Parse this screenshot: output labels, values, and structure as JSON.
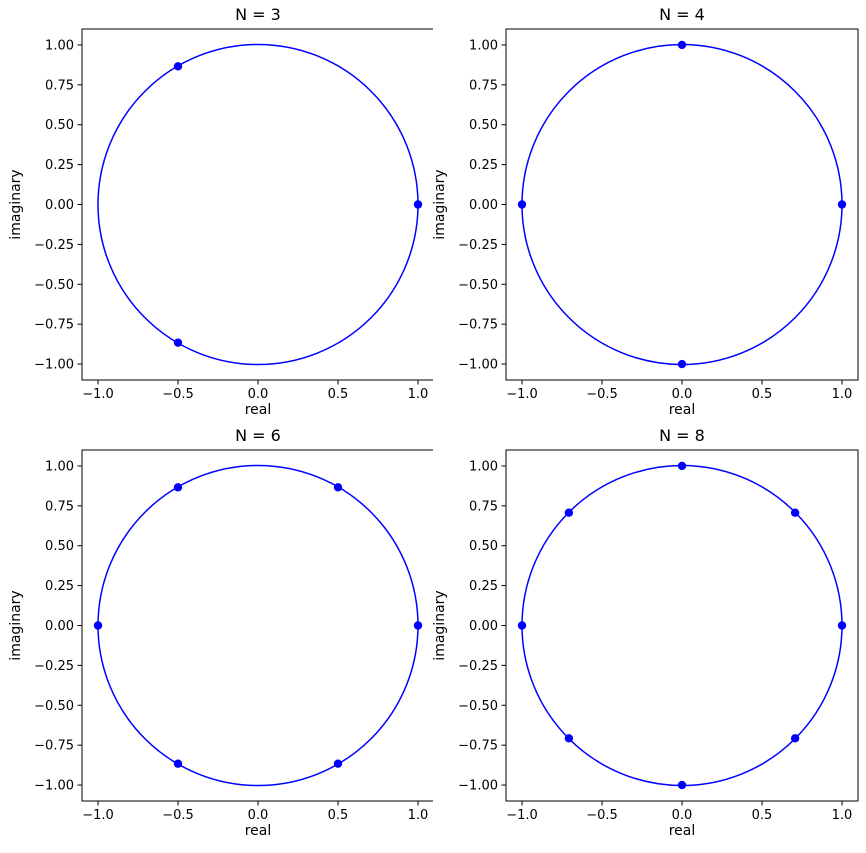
{
  "figure": {
    "background": "#ffffff"
  },
  "style": {
    "line_color": "#0000ff",
    "marker_color": "#0000ff",
    "axis_color": "#000000",
    "text_color": "#000000",
    "background": "#ffffff"
  },
  "chart_data": [
    {
      "type": "scatter",
      "title": "N = 3",
      "xlabel": "real",
      "ylabel": "imaginary",
      "xlim": [
        -1.1,
        1.1
      ],
      "ylim": [
        -1.1,
        1.1
      ],
      "grid": false,
      "legend": "none",
      "xticks": {
        "values": [
          -1.0,
          -0.5,
          0.0,
          0.5,
          1.0
        ],
        "labels": [
          "−1.0",
          "−0.5",
          "0.0",
          "0.5",
          "1.0"
        ]
      },
      "yticks": {
        "values": [
          1.0,
          0.75,
          0.5,
          0.25,
          0.0,
          -0.25,
          -0.5,
          -0.75,
          -1.0
        ],
        "labels": [
          "1.00",
          "0.75",
          "0.50",
          "0.25",
          "0.00",
          "−0.25",
          "−0.50",
          "−0.75",
          "−1.00"
        ]
      },
      "unit_circle": {
        "cx": 0,
        "cy": 0,
        "r": 1,
        "color": "#0000ff"
      },
      "points": {
        "color": "#0000ff",
        "xy": [
          [
            1,
            0
          ],
          [
            -0.5,
            0.866
          ],
          [
            -0.5,
            -0.866
          ]
        ]
      },
      "n_roots": 3
    },
    {
      "type": "scatter",
      "title": "N = 4",
      "xlabel": "real",
      "ylabel": "imaginary",
      "xlim": [
        -1.1,
        1.1
      ],
      "ylim": [
        -1.1,
        1.1
      ],
      "grid": false,
      "legend": "none",
      "xticks": {
        "values": [
          -1.0,
          -0.5,
          0.0,
          0.5,
          1.0
        ],
        "labels": [
          "−1.0",
          "−0.5",
          "0.0",
          "0.5",
          "1.0"
        ]
      },
      "yticks": {
        "values": [
          1.0,
          0.75,
          0.5,
          0.25,
          0.0,
          -0.25,
          -0.5,
          -0.75,
          -1.0
        ],
        "labels": [
          "1.00",
          "0.75",
          "0.50",
          "0.25",
          "0.00",
          "−0.25",
          "−0.50",
          "−0.75",
          "−1.00"
        ]
      },
      "unit_circle": {
        "cx": 0,
        "cy": 0,
        "r": 1,
        "color": "#0000ff"
      },
      "points": {
        "color": "#0000ff",
        "xy": [
          [
            1,
            0
          ],
          [
            0,
            1
          ],
          [
            -1,
            0
          ],
          [
            0,
            -1
          ]
        ]
      },
      "n_roots": 4
    },
    {
      "type": "scatter",
      "title": "N = 6",
      "xlabel": "real",
      "ylabel": "imaginary",
      "xlim": [
        -1.1,
        1.1
      ],
      "ylim": [
        -1.1,
        1.1
      ],
      "grid": false,
      "legend": "none",
      "xticks": {
        "values": [
          -1.0,
          -0.5,
          0.0,
          0.5,
          1.0
        ],
        "labels": [
          "−1.0",
          "−0.5",
          "0.0",
          "0.5",
          "1.0"
        ]
      },
      "yticks": {
        "values": [
          1.0,
          0.75,
          0.5,
          0.25,
          0.0,
          -0.25,
          -0.5,
          -0.75,
          -1.0
        ],
        "labels": [
          "1.00",
          "0.75",
          "0.50",
          "0.25",
          "0.00",
          "−0.25",
          "−0.50",
          "−0.75",
          "−1.00"
        ]
      },
      "unit_circle": {
        "cx": 0,
        "cy": 0,
        "r": 1,
        "color": "#0000ff"
      },
      "points": {
        "color": "#0000ff",
        "xy": [
          [
            1,
            0
          ],
          [
            0.5,
            0.866
          ],
          [
            -0.5,
            0.866
          ],
          [
            -1,
            0
          ],
          [
            -0.5,
            -0.866
          ],
          [
            0.5,
            -0.866
          ]
        ]
      },
      "n_roots": 6
    },
    {
      "type": "scatter",
      "title": "N = 8",
      "xlabel": "real",
      "ylabel": "imaginary",
      "xlim": [
        -1.1,
        1.1
      ],
      "ylim": [
        -1.1,
        1.1
      ],
      "grid": false,
      "legend": "none",
      "xticks": {
        "values": [
          -1.0,
          -0.5,
          0.0,
          0.5,
          1.0
        ],
        "labels": [
          "−1.0",
          "−0.5",
          "0.0",
          "0.5",
          "1.0"
        ]
      },
      "yticks": {
        "values": [
          1.0,
          0.75,
          0.5,
          0.25,
          0.0,
          -0.25,
          -0.5,
          -0.75,
          -1.0
        ],
        "labels": [
          "1.00",
          "0.75",
          "0.50",
          "0.25",
          "0.00",
          "−0.25",
          "−0.50",
          "−0.75",
          "−1.00"
        ]
      },
      "unit_circle": {
        "cx": 0,
        "cy": 0,
        "r": 1,
        "color": "#0000ff"
      },
      "points": {
        "color": "#0000ff",
        "xy": [
          [
            1,
            0
          ],
          [
            0.707,
            0.707
          ],
          [
            0,
            1
          ],
          [
            -0.707,
            0.707
          ],
          [
            -1,
            0
          ],
          [
            -0.707,
            -0.707
          ],
          [
            0,
            -1
          ],
          [
            0.707,
            -0.707
          ]
        ]
      },
      "n_roots": 8
    }
  ]
}
